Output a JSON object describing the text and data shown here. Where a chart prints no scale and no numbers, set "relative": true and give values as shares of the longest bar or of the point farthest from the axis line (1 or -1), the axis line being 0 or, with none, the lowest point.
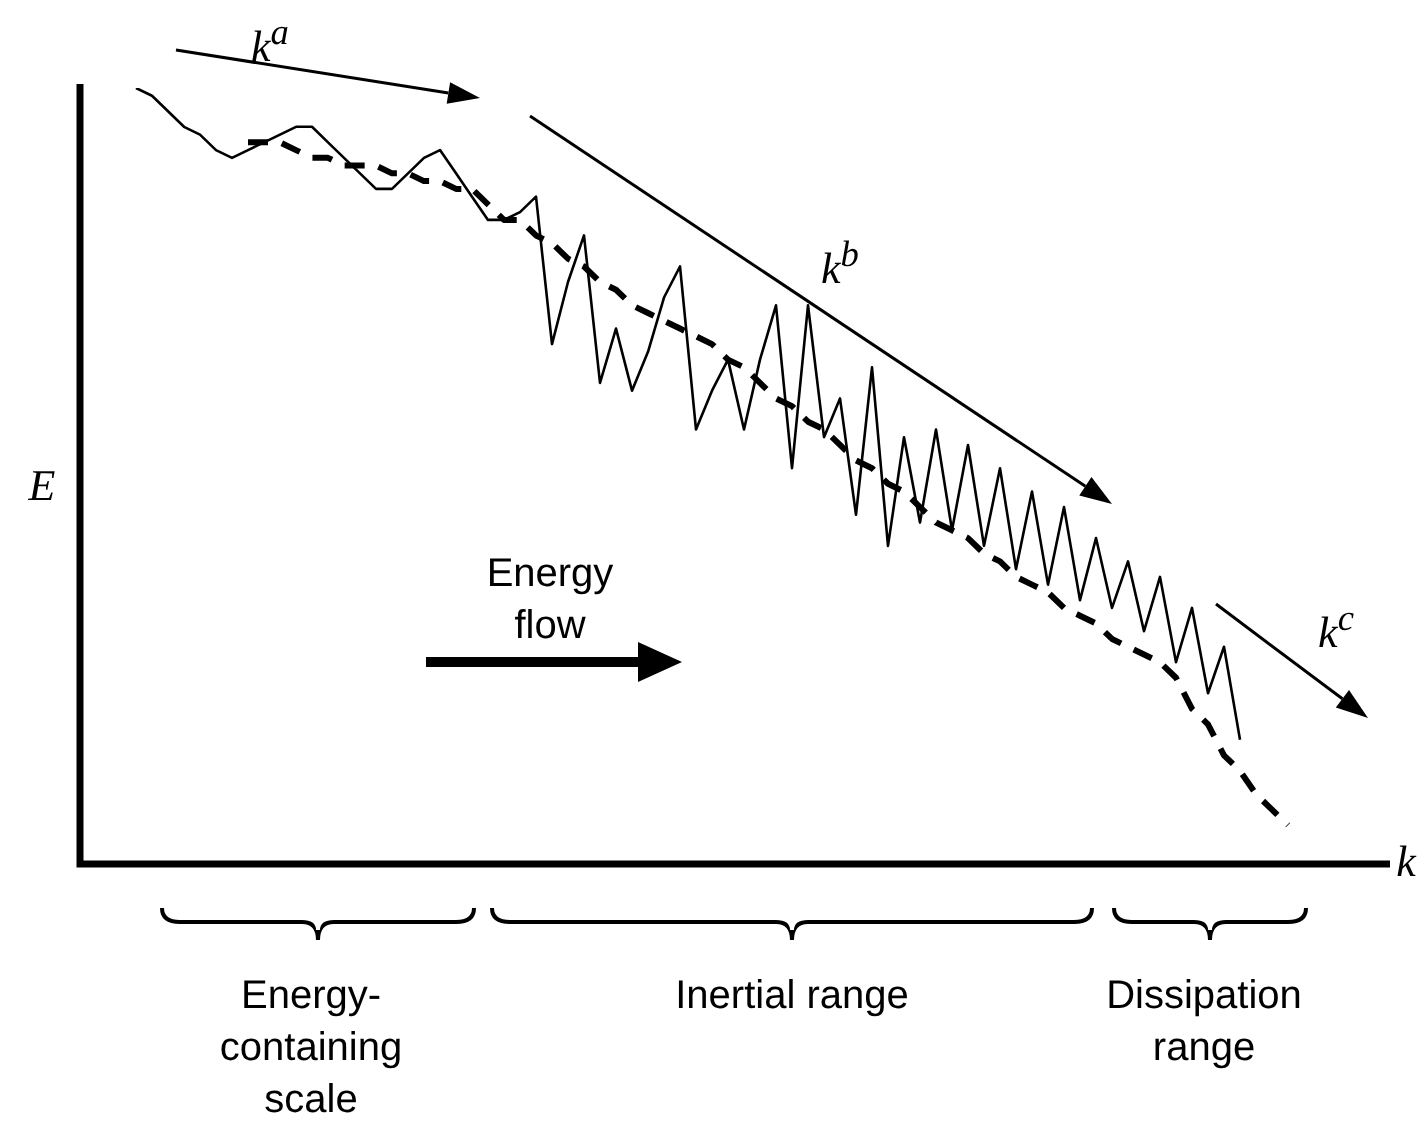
{
  "chart_data": {
    "type": "line",
    "relative": true,
    "xlabel": "k",
    "ylabel": "E",
    "legend": false,
    "marker": "none",
    "categories": [
      null,
      null,
      null,
      null,
      null,
      null,
      null,
      null,
      null,
      null,
      null,
      null,
      null,
      null,
      null,
      null,
      null,
      null,
      null,
      null,
      null,
      null,
      null,
      null,
      null,
      null,
      null,
      null,
      null,
      null,
      null,
      null,
      null,
      null,
      null,
      null,
      null,
      null,
      null,
      null,
      null,
      null,
      null,
      null,
      null,
      null,
      null,
      null,
      null,
      null,
      null,
      null,
      null,
      null,
      null,
      null,
      null,
      null,
      null,
      null,
      null,
      null,
      null,
      null,
      null,
      null,
      null,
      null,
      null,
      null,
      null,
      null,
      null
    ],
    "series": [
      {
        "color": "#000000",
        "line_style": "solid",
        "values": [
          1,
          0.99,
          0.97,
          0.95,
          0.94,
          0.92,
          0.91,
          0.92,
          0.93,
          0.94,
          0.95,
          0.95,
          0.93,
          0.91,
          0.89,
          0.87,
          0.87,
          0.89,
          0.91,
          0.92,
          0.89,
          0.86,
          0.83,
          0.83,
          0.84,
          0.86,
          0.67,
          0.75,
          0.81,
          0.62,
          0.69,
          0.61,
          0.66,
          0.73,
          0.77,
          0.56,
          0.61,
          0.65,
          0.56,
          0.65,
          0.72,
          0.51,
          0.72,
          0.55,
          0.6,
          0.45,
          0.64,
          0.41,
          0.55,
          0.44,
          0.56,
          0.43,
          0.54,
          0.41,
          0.51,
          0.38,
          0.48,
          0.36,
          0.46,
          0.34,
          0.42,
          0.33,
          0.39,
          0.3,
          0.37,
          0.26,
          0.33,
          0.22,
          0.28,
          0.16,
          null,
          null,
          null
        ]
      },
      {
        "color": "#000000",
        "line_style": "dashed",
        "values": [
          null,
          null,
          null,
          null,
          null,
          null,
          null,
          0.93,
          0.93,
          0.93,
          0.92,
          0.91,
          0.91,
          0.9,
          0.9,
          0.9,
          0.89,
          0.89,
          0.88,
          0.88,
          0.87,
          0.87,
          0.85,
          0.83,
          0.83,
          0.81,
          0.8,
          0.78,
          0.77,
          0.75,
          0.74,
          0.72,
          0.71,
          0.7,
          0.69,
          0.68,
          0.67,
          0.65,
          0.64,
          0.62,
          0.6,
          0.59,
          0.57,
          0.56,
          0.54,
          0.52,
          0.51,
          0.49,
          0.48,
          0.46,
          0.44,
          0.43,
          0.42,
          0.4,
          0.39,
          0.37,
          0.36,
          0.35,
          0.33,
          0.32,
          0.31,
          0.29,
          0.28,
          0.27,
          0.26,
          0.24,
          0.2,
          0.18,
          0.14,
          0.12,
          0.09,
          0.07,
          0.05
        ]
      }
    ],
    "annotations": [
      "k$^{a}$",
      "k$^{b}$",
      "k$^{c}$",
      "Energy flow",
      "Energy-containing scale",
      "Inertial range",
      "Dissipation range"
    ]
  }
}
